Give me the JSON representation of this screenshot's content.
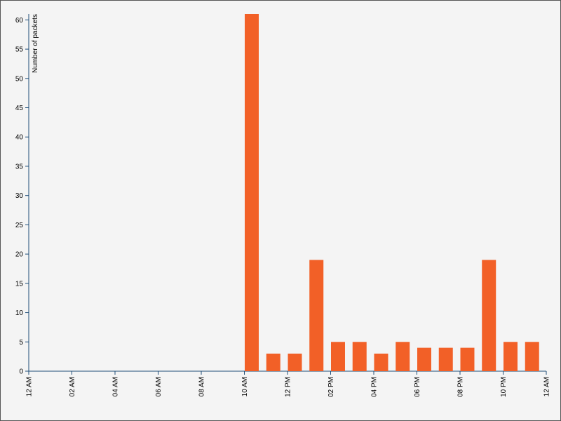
{
  "chart_data": {
    "type": "bar",
    "y_label": "Number of packets",
    "color": "#f26027",
    "x": [
      10,
      11,
      12,
      13,
      14,
      15,
      16,
      17,
      18,
      19,
      20,
      21,
      22,
      23
    ],
    "values": [
      61,
      3,
      3,
      19,
      5,
      5,
      3,
      5,
      4,
      4,
      4,
      19,
      5,
      5
    ],
    "xlim": [
      0,
      24
    ],
    "xticks": [
      {
        "value": 0,
        "label": "12 AM"
      },
      {
        "value": 2,
        "label": "02 AM"
      },
      {
        "value": 4,
        "label": "04 AM"
      },
      {
        "value": 6,
        "label": "06 AM"
      },
      {
        "value": 8,
        "label": "08 AM"
      },
      {
        "value": 10,
        "label": "10 AM"
      },
      {
        "value": 12,
        "label": "12 PM"
      },
      {
        "value": 14,
        "label": "02 PM"
      },
      {
        "value": 16,
        "label": "04 PM"
      },
      {
        "value": 18,
        "label": "06 PM"
      },
      {
        "value": 20,
        "label": "08 PM"
      },
      {
        "value": 22,
        "label": "10 PM"
      },
      {
        "value": 24,
        "label": "12 AM"
      }
    ],
    "ylim": [
      0,
      61
    ],
    "yticks": [
      0,
      5,
      10,
      15,
      20,
      25,
      30,
      35,
      40,
      45,
      50,
      55,
      60
    ]
  }
}
